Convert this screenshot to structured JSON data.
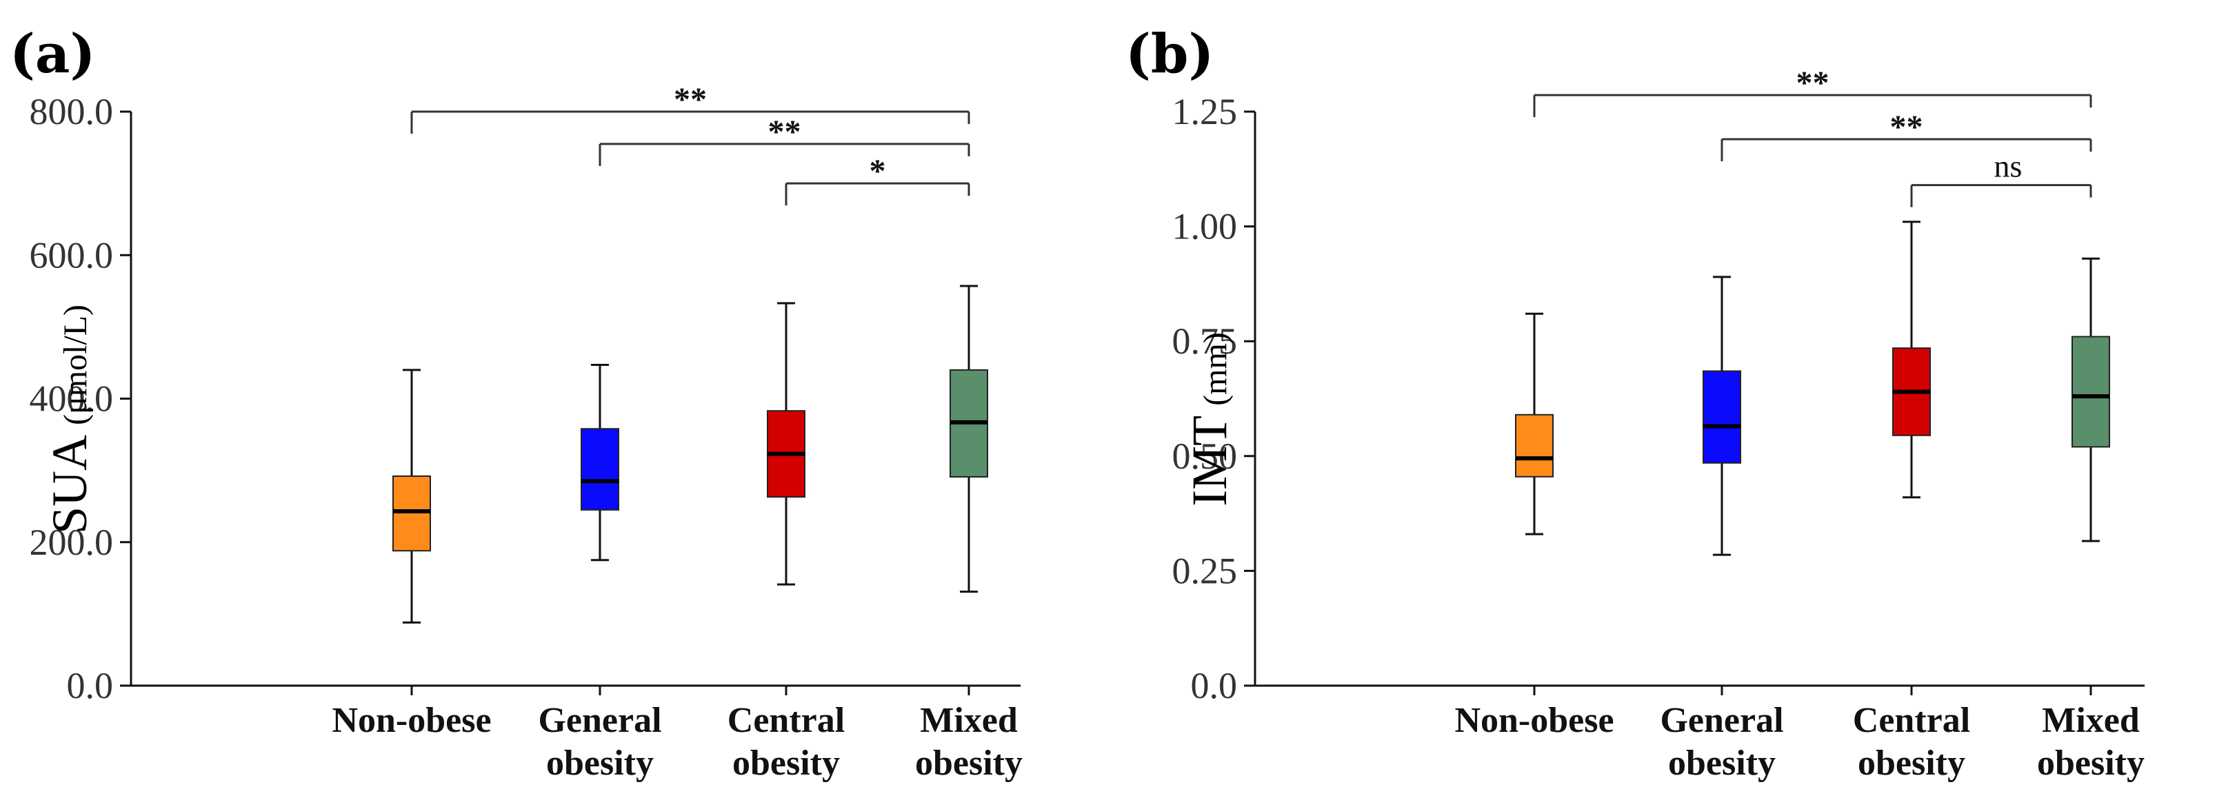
{
  "chart_data": [
    {
      "type": "box",
      "panel_label": "(a)",
      "ylabel_main": "SUA",
      "ylabel_unit": "(μmol/L)",
      "ylim": [
        0,
        800
      ],
      "yticks": [
        0,
        200,
        400,
        600,
        800
      ],
      "ytick_labels": [
        "0.0",
        "200.0",
        "400.0",
        "600.0",
        "800.0"
      ],
      "categories": [
        {
          "line1": "Non-obese",
          "line2": ""
        },
        {
          "line1": "General",
          "line2": "obesity"
        },
        {
          "line1": "Central",
          "line2": "obesity"
        },
        {
          "line1": "Mixed",
          "line2": "obesity"
        }
      ],
      "boxes": [
        {
          "whisker_low": 88,
          "q1": 188,
          "median": 243,
          "q3": 292,
          "whisker_high": 440,
          "color": "#ff8c1a"
        },
        {
          "whisker_low": 175,
          "q1": 245,
          "median": 285,
          "q3": 358,
          "whisker_high": 447,
          "color": "#0a0aff"
        },
        {
          "whisker_low": 141,
          "q1": 263,
          "median": 323,
          "q3": 383,
          "whisker_high": 533,
          "color": "#d40000"
        },
        {
          "whisker_low": 131,
          "q1": 291,
          "median": 367,
          "q3": 440,
          "whisker_high": 557,
          "color": "#5a8f6b"
        }
      ],
      "significance": [
        {
          "from": 0,
          "to": 3,
          "level": 800,
          "label": "**"
        },
        {
          "from": 1,
          "to": 3,
          "level": 755,
          "label": "**"
        },
        {
          "from": 2,
          "to": 3,
          "level": 700,
          "label": "*"
        }
      ]
    },
    {
      "type": "box",
      "panel_label": "(b)",
      "ylabel_main": "IMT",
      "ylabel_unit": "(mm)",
      "ylim": [
        0,
        1.25
      ],
      "yticks": [
        0,
        0.25,
        0.5,
        0.75,
        1.0,
        1.25
      ],
      "ytick_labels": [
        "0.0",
        "0.25",
        "0.50",
        "0.75",
        "1.00",
        "1.25"
      ],
      "categories": [
        {
          "line1": "Non-obese",
          "line2": ""
        },
        {
          "line1": "General",
          "line2": "obesity"
        },
        {
          "line1": "Central",
          "line2": "obesity"
        },
        {
          "line1": "Mixed",
          "line2": "obesity"
        }
      ],
      "boxes": [
        {
          "whisker_low": 0.33,
          "q1": 0.455,
          "median": 0.495,
          "q3": 0.59,
          "whisker_high": 0.81,
          "color": "#ff8c1a"
        },
        {
          "whisker_low": 0.285,
          "q1": 0.485,
          "median": 0.565,
          "q3": 0.685,
          "whisker_high": 0.89,
          "color": "#0a0aff"
        },
        {
          "whisker_low": 0.41,
          "q1": 0.545,
          "median": 0.64,
          "q3": 0.735,
          "whisker_high": 1.01,
          "color": "#d40000"
        },
        {
          "whisker_low": 0.315,
          "q1": 0.52,
          "median": 0.63,
          "q3": 0.76,
          "whisker_high": 0.93,
          "color": "#5a8f6b"
        }
      ],
      "significance": [
        {
          "from": 0,
          "to": 3,
          "level": 1.286,
          "label": "**"
        },
        {
          "from": 1,
          "to": 3,
          "level": 1.19,
          "label": "**"
        },
        {
          "from": 2,
          "to": 3,
          "level": 1.09,
          "label": "ns"
        }
      ]
    }
  ]
}
